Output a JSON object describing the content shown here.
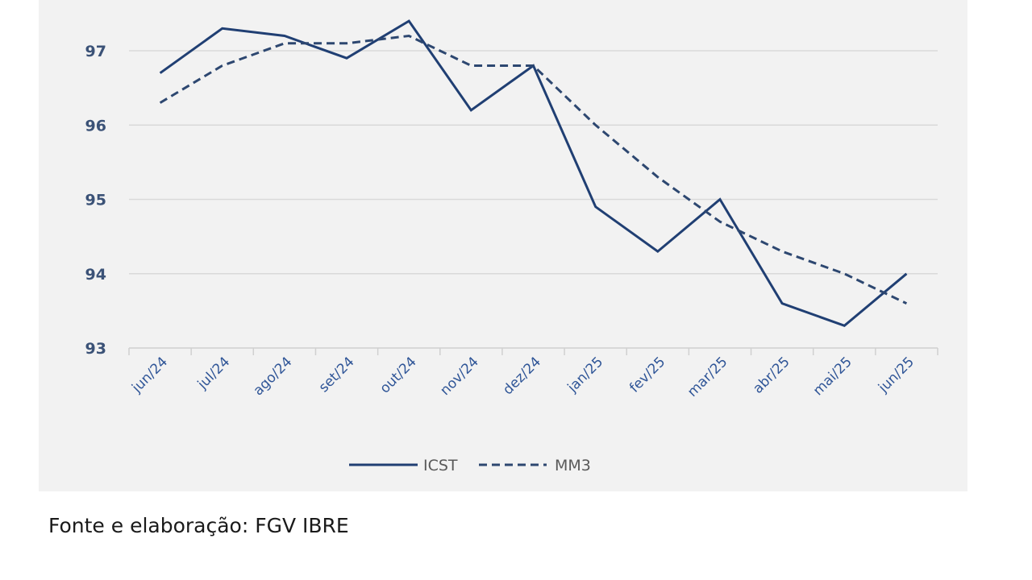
{
  "chart_data": {
    "type": "line",
    "title": "",
    "xlabel": "",
    "ylabel": "",
    "categories": [
      "jun/24",
      "jul/24",
      "ago/24",
      "set/24",
      "out/24",
      "nov/24",
      "dez/24",
      "jan/25",
      "fev/25",
      "mar/25",
      "abr/25",
      "mai/25",
      "jun/25"
    ],
    "ylim": [
      93,
      97.5
    ],
    "yticks": [
      93,
      94,
      95,
      96,
      97
    ],
    "grid": true,
    "legend_position": "bottom",
    "series": [
      {
        "name": "ICST",
        "style": "solid",
        "color": "#203f73",
        "values": [
          96.7,
          97.3,
          97.2,
          96.9,
          97.4,
          96.2,
          96.8,
          94.9,
          94.3,
          95.0,
          93.6,
          93.3,
          94.0
        ]
      },
      {
        "name": "MM3",
        "style": "dashed",
        "color": "#2d4770",
        "values": [
          96.3,
          96.8,
          97.1,
          97.1,
          97.2,
          96.8,
          96.8,
          96.0,
          95.3,
          94.7,
          94.3,
          94.0,
          93.6
        ]
      }
    ]
  },
  "caption": "Fonte e elaboração: FGV IBRE"
}
